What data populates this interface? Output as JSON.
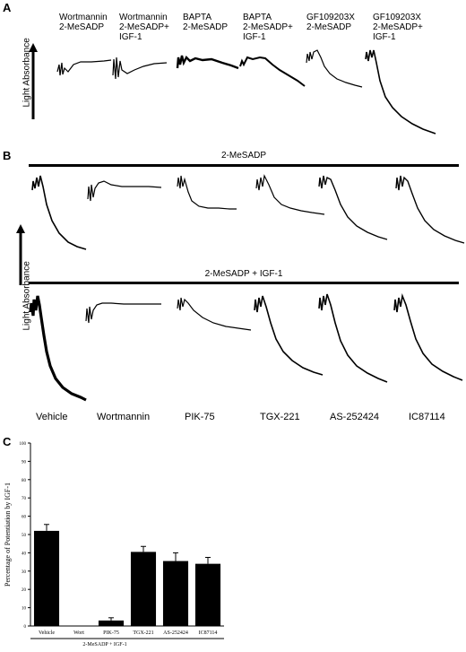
{
  "panel_a": {
    "letter": "A",
    "axis_label": "Light Absorbance",
    "conditions": [
      {
        "line1": "Wortmannin",
        "line2": "2-MeSADP",
        "line3": ""
      },
      {
        "line1": "Wortmannin",
        "line2": "2-MeSADP+",
        "line3": "IGF-1"
      },
      {
        "line1": "BAPTA",
        "line2": "2-MeSADP",
        "line3": ""
      },
      {
        "line1": "BAPTA",
        "line2": "2-MeSADP+",
        "line3": "IGF-1"
      },
      {
        "line1": "GF109203X",
        "line2": "2-MeSADP",
        "line3": ""
      },
      {
        "line1": "GF109203X",
        "line2": "2-MeSADP+",
        "line3": "IGF-1"
      }
    ]
  },
  "panel_b": {
    "letter": "B",
    "axis_label": "Light Absorbance",
    "row1_label": "2-MeSADP",
    "row2_label": "2-MeSADP + IGF-1",
    "columns": [
      "Vehicle",
      "Wortmannin",
      "PIK-75",
      "TGX-221",
      "AS-252424",
      "IC87114"
    ]
  },
  "chart_data": {
    "type": "bar",
    "panel": "C",
    "title": "",
    "categories": [
      "Vehicle",
      "Wort",
      "PIK-75",
      "TGX-221",
      "AS-252424",
      "IC87114"
    ],
    "values": [
      52,
      0,
      3,
      40.5,
      35.5,
      34
    ],
    "errors": [
      3.5,
      0,
      1.5,
      3,
      4.5,
      3.5
    ],
    "ylabel": "Percentage of Potentiation by IGF-1",
    "xlabel": "2-MeSADP + IGF-1",
    "ylim": [
      0,
      100
    ],
    "yticks": [
      0,
      10,
      20,
      30,
      40,
      50,
      60,
      70,
      80,
      90,
      100
    ],
    "bar_color": "#000000"
  }
}
